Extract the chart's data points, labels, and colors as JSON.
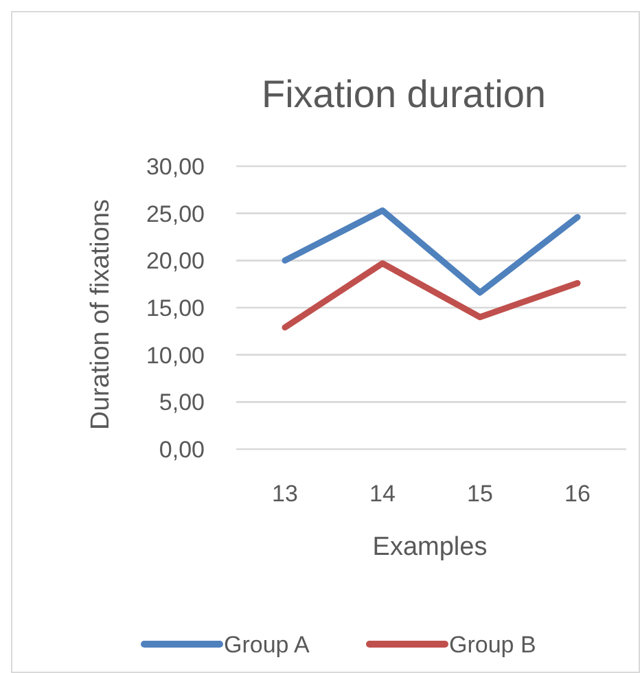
{
  "chart_data": {
    "type": "line",
    "title": "Fixation duration",
    "xlabel": "Examples",
    "ylabel": "Duration of fixations",
    "categories": [
      "13",
      "14",
      "15",
      "16"
    ],
    "series": [
      {
        "name": "Group A",
        "color": "#4f81bd",
        "values": [
          20.0,
          25.3,
          16.6,
          24.6
        ]
      },
      {
        "name": "Group B",
        "color": "#c0504d",
        "values": [
          12.9,
          19.7,
          14.0,
          17.6
        ]
      }
    ],
    "ylim": [
      0,
      30
    ],
    "yticks": [
      {
        "value": 0,
        "label": "0,00"
      },
      {
        "value": 5,
        "label": "5,00"
      },
      {
        "value": 10,
        "label": "10,00"
      },
      {
        "value": 15,
        "label": "15,00"
      },
      {
        "value": 20,
        "label": "20,00"
      },
      {
        "value": 25,
        "label": "25,00"
      },
      {
        "value": 30,
        "label": "30,00"
      }
    ],
    "grid": "y",
    "legend": "bottom",
    "marker": "none",
    "line_style": "solid"
  }
}
